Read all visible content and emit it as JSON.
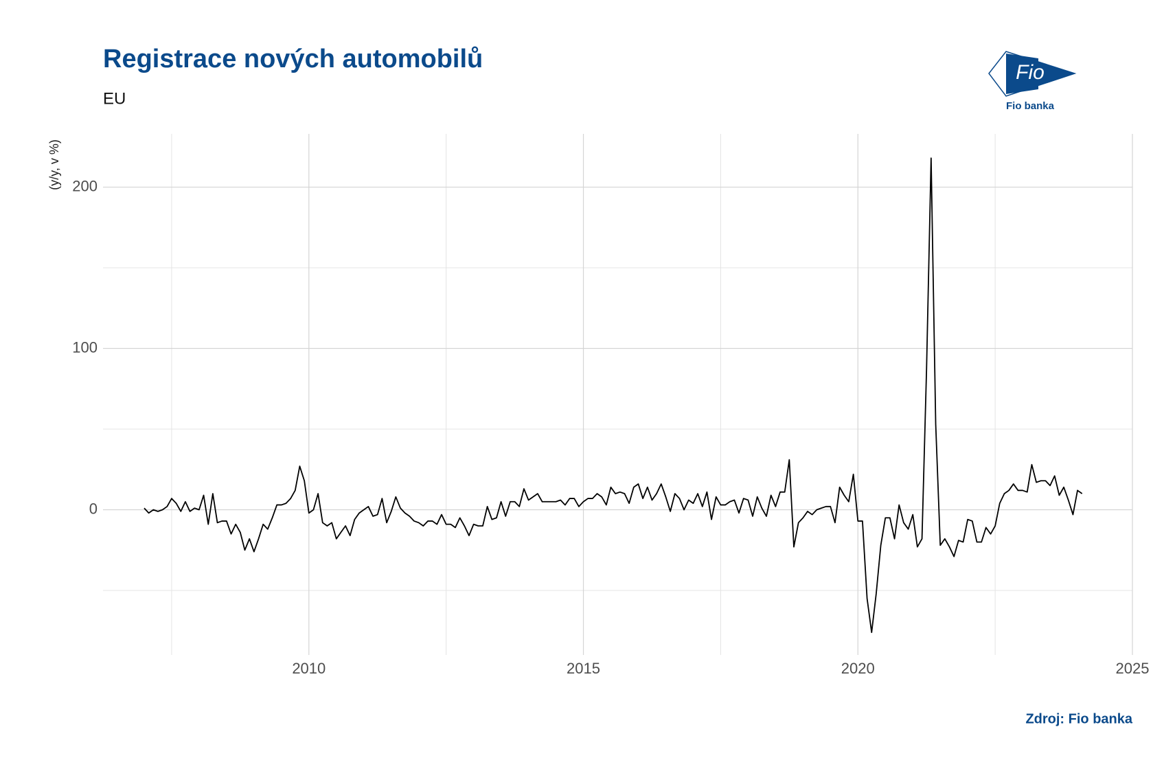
{
  "chart_data": {
    "type": "line",
    "title": "Registrace nových automobilů",
    "subtitle": "EU",
    "y_label": "(y/y, v %)",
    "source": "Zdroj: Fio banka",
    "logo": {
      "mark": "Fio",
      "name": "Fio banka"
    },
    "xlim": [
      2006.25,
      2025
    ],
    "xticks": [
      2010,
      2015,
      2020,
      2025
    ],
    "x_minor_ticks": [
      2007.5,
      2012.5,
      2017.5,
      2022.5
    ],
    "ylim": [
      -90,
      233
    ],
    "yticks": [
      0,
      100,
      200
    ],
    "y_minor_ticks": [
      -50,
      50,
      150
    ],
    "grid": true,
    "x": [
      2007,
      2007.083,
      2007.167,
      2007.25,
      2007.333,
      2007.417,
      2007.5,
      2007.583,
      2007.667,
      2007.75,
      2007.833,
      2007.917,
      2008,
      2008.083,
      2008.167,
      2008.25,
      2008.333,
      2008.417,
      2008.5,
      2008.583,
      2008.667,
      2008.75,
      2008.833,
      2008.917,
      2009,
      2009.083,
      2009.167,
      2009.25,
      2009.333,
      2009.417,
      2009.5,
      2009.583,
      2009.667,
      2009.75,
      2009.833,
      2009.917,
      2010,
      2010.083,
      2010.167,
      2010.25,
      2010.333,
      2010.417,
      2010.5,
      2010.583,
      2010.667,
      2010.75,
      2010.833,
      2010.917,
      2011,
      2011.083,
      2011.167,
      2011.25,
      2011.333,
      2011.417,
      2011.5,
      2011.583,
      2011.667,
      2011.75,
      2011.833,
      2011.917,
      2012,
      2012.083,
      2012.167,
      2012.25,
      2012.333,
      2012.417,
      2012.5,
      2012.583,
      2012.667,
      2012.75,
      2012.833,
      2012.917,
      2013,
      2013.083,
      2013.167,
      2013.25,
      2013.333,
      2013.417,
      2013.5,
      2013.583,
      2013.667,
      2013.75,
      2013.833,
      2013.917,
      2014,
      2014.083,
      2014.167,
      2014.25,
      2014.333,
      2014.417,
      2014.5,
      2014.583,
      2014.667,
      2014.75,
      2014.833,
      2014.917,
      2015,
      2015.083,
      2015.167,
      2015.25,
      2015.333,
      2015.417,
      2015.5,
      2015.583,
      2015.667,
      2015.75,
      2015.833,
      2015.917,
      2016,
      2016.083,
      2016.167,
      2016.25,
      2016.333,
      2016.417,
      2016.5,
      2016.583,
      2016.667,
      2016.75,
      2016.833,
      2016.917,
      2017,
      2017.083,
      2017.167,
      2017.25,
      2017.333,
      2017.417,
      2017.5,
      2017.583,
      2017.667,
      2017.75,
      2017.833,
      2017.917,
      2018,
      2018.083,
      2018.167,
      2018.25,
      2018.333,
      2018.417,
      2018.5,
      2018.583,
      2018.667,
      2018.75,
      2018.833,
      2018.917,
      2019,
      2019.083,
      2019.167,
      2019.25,
      2019.333,
      2019.417,
      2019.5,
      2019.583,
      2019.667,
      2019.75,
      2019.833,
      2019.917,
      2020,
      2020.083,
      2020.167,
      2020.25,
      2020.333,
      2020.417,
      2020.5,
      2020.583,
      2020.667,
      2020.75,
      2020.833,
      2020.917,
      2021,
      2021.083,
      2021.167,
      2021.25,
      2021.333,
      2021.417,
      2021.5,
      2021.583,
      2021.667,
      2021.75,
      2021.833,
      2021.917,
      2022,
      2022.083,
      2022.167,
      2022.25,
      2022.333,
      2022.417,
      2022.5,
      2022.583,
      2022.667,
      2022.75,
      2022.833,
      2022.917,
      2023,
      2023.083,
      2023.167,
      2023.25,
      2023.333,
      2023.417,
      2023.5,
      2023.583,
      2023.667,
      2023.75,
      2023.833,
      2023.917,
      2024,
      2024.083
    ],
    "color": "#000000",
    "values": [
      1,
      -2,
      0,
      -1,
      0,
      2,
      7,
      4,
      -1,
      5,
      -1,
      1,
      0,
      9,
      -9,
      10,
      -8,
      -7,
      -7,
      -15,
      -9,
      -14,
      -25,
      -18,
      -26,
      -18,
      -9,
      -12,
      -5,
      3,
      3,
      4,
      7,
      12,
      27,
      18,
      -2,
      0,
      10,
      -8,
      -10,
      -8,
      -18,
      -14,
      -10,
      -16,
      -6,
      -2,
      0,
      2,
      -4,
      -3,
      7,
      -8,
      -1,
      8,
      1,
      -2,
      -4,
      -7,
      -8,
      -10,
      -7,
      -7,
      -9,
      -3,
      -9,
      -9,
      -11,
      -5,
      -10,
      -16,
      -9,
      -10,
      -10,
      2,
      -6,
      -5,
      5,
      -4,
      5,
      5,
      2,
      13,
      6,
      8,
      10,
      5,
      5,
      5,
      5,
      6,
      3,
      7,
      7,
      2,
      5,
      7,
      7,
      10,
      8,
      3,
      14,
      10,
      11,
      10,
      4,
      14,
      16,
      7,
      14,
      6,
      10,
      16,
      8,
      -1,
      10,
      7,
      0,
      6,
      4,
      10,
      2,
      11,
      -6,
      8,
      3,
      3,
      5,
      6,
      -2,
      7,
      6,
      -4,
      8,
      1,
      -4,
      9,
      2,
      11,
      11,
      31,
      -23,
      -8,
      -5,
      -1,
      -3,
      0,
      1,
      2,
      2,
      -8,
      14,
      9,
      5,
      22,
      -7,
      -7,
      -55,
      -76,
      -52,
      -22,
      -5,
      -5,
      -18,
      3,
      -8,
      -12,
      -3,
      -23,
      -18,
      87,
      218,
      53,
      -22,
      -18,
      -23,
      -29,
      -19,
      -20,
      -6,
      -7,
      -20,
      -20,
      -11,
      -15,
      -10,
      4,
      10,
      12,
      16,
      12,
      12,
      11,
      28,
      17,
      18,
      18,
      15,
      21,
      9,
      14,
      6,
      -3,
      12,
      10
    ]
  }
}
